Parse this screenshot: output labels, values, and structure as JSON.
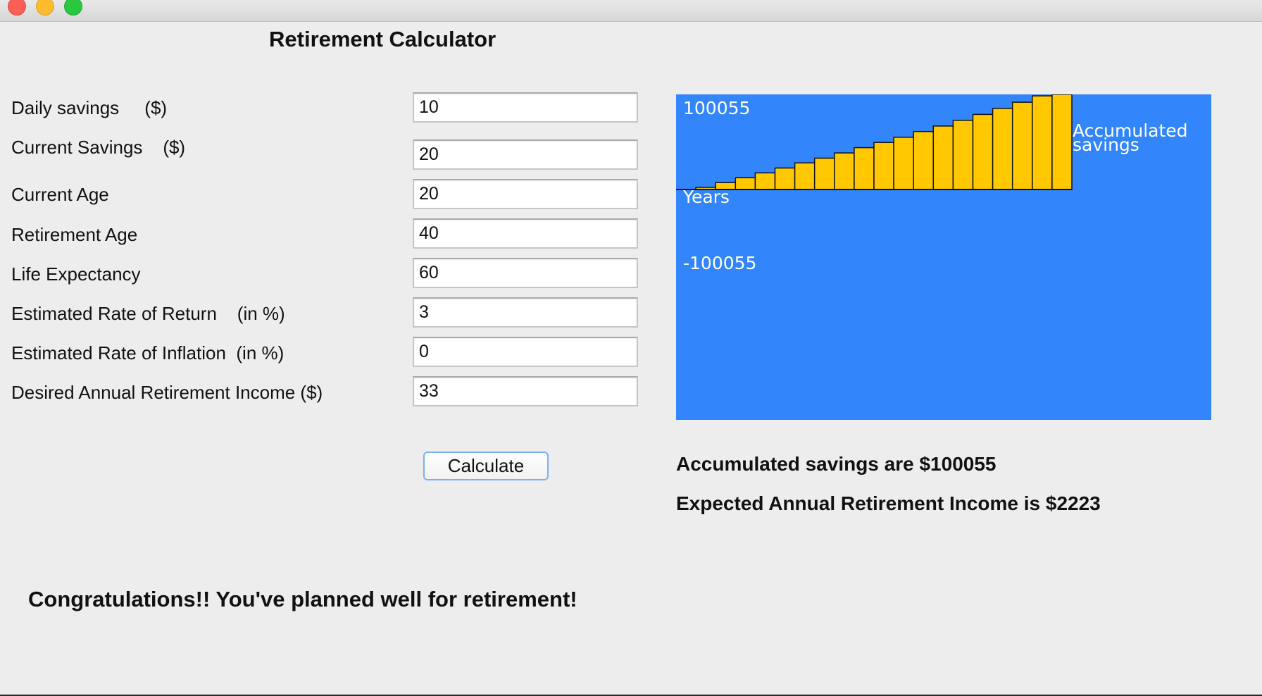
{
  "window": {
    "title": "Retirement Calculator"
  },
  "form": {
    "fields": [
      {
        "label": "Daily savings     ($)",
        "value": "10"
      },
      {
        "label": "Current Savings    ($)",
        "value": "20"
      },
      {
        "label": "Current Age",
        "value": "20"
      },
      {
        "label": "Retirement Age",
        "value": "40"
      },
      {
        "label": "Life Expectancy",
        "value": "60"
      },
      {
        "label": "Estimated Rate of Return    (in %)",
        "value": "3"
      },
      {
        "label": "Estimated Rate of Inflation  (in %)",
        "value": "0"
      },
      {
        "label": "Desired Annual Retirement Income ($)",
        "value": "33"
      }
    ],
    "calculate_label": "Calculate"
  },
  "results": {
    "accumulated": "Accumulated savings are $100055",
    "expected_income": "Expected Annual Retirement Income is $2223",
    "message": "Congratulations!! You've planned well for retirement!"
  },
  "chart_data": {
    "type": "bar",
    "max_label": "100055",
    "min_label": "-100055",
    "xlabel": "Years",
    "series_label_line1": "Accumulated",
    "series_label_line2": "savings",
    "ylim": [
      -100055,
      100055
    ],
    "values": [
      0,
      2250,
      7300,
      12400,
      17500,
      22600,
      28000,
      33000,
      38500,
      44000,
      49500,
      55000,
      61000,
      66800,
      72800,
      79000,
      85300,
      91800,
      98500,
      100055
    ],
    "colors": {
      "background": "#3385fb",
      "bar": "#ffc800",
      "text": "#ffffff"
    }
  }
}
